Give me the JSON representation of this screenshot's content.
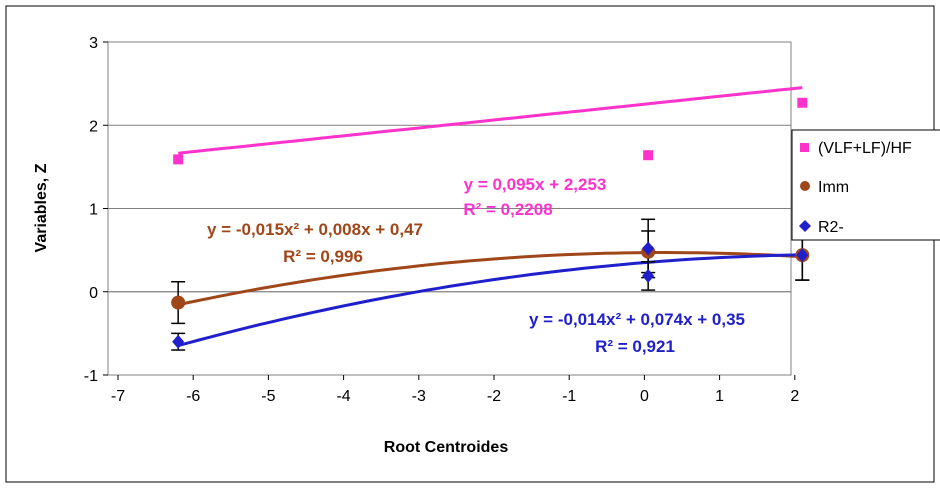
{
  "chart_data": {
    "type": "scatter",
    "title": "",
    "xlabel": "Root Centroides",
    "ylabel": "Variables, Z",
    "xlim": [
      -7,
      2
    ],
    "ylim": [
      -1,
      3
    ],
    "x_ticks": [
      "-7",
      "-6",
      "-5",
      "-4",
      "-3",
      "-2",
      "-1",
      "0",
      "1",
      "2"
    ],
    "y_ticks": [
      "-1",
      "0",
      "1",
      "2",
      "3"
    ],
    "grid": "horizontal",
    "legend_position": "right",
    "series": [
      {
        "name": "(VLF+LF)/HF",
        "color": "#ff33cc",
        "marker": "square",
        "x": [
          -6.2,
          0.05,
          2.1
        ],
        "y": [
          1.59,
          1.64,
          2.27
        ],
        "trendline": {
          "kind": "linear",
          "coeffs": [
            0.095,
            2.253
          ],
          "equation": "y = 0,095x + 2,253",
          "r2": "R² = 0,2208"
        }
      },
      {
        "name": "Imm",
        "color": "#a0471a",
        "marker": "circle",
        "x": [
          -6.2,
          0.05,
          2.1
        ],
        "y": [
          -0.13,
          0.48,
          0.44
        ],
        "error": [
          0.25,
          0.25,
          0.3
        ],
        "trendline": {
          "kind": "poly2",
          "coeffs": [
            -0.015,
            0.008,
            0.47
          ],
          "equation": "y = -0,015x² + 0,008x + 0,47",
          "r2": "R² = 0,996"
        }
      },
      {
        "name": "R2-",
        "color": "#1f1fcc",
        "marker": "diamond",
        "x": [
          -6.2,
          0.05,
          0.05,
          2.1
        ],
        "y": [
          -0.6,
          0.52,
          0.19,
          0.44
        ],
        "error": [
          0.1,
          0.35,
          0.17,
          0.3
        ],
        "trendline": {
          "kind": "poly2",
          "coeffs": [
            -0.014,
            0.074,
            0.35
          ],
          "equation": "y = -0,014x² + 0,074x + 0,35",
          "r2": "R² = 0,921"
        }
      }
    ]
  }
}
